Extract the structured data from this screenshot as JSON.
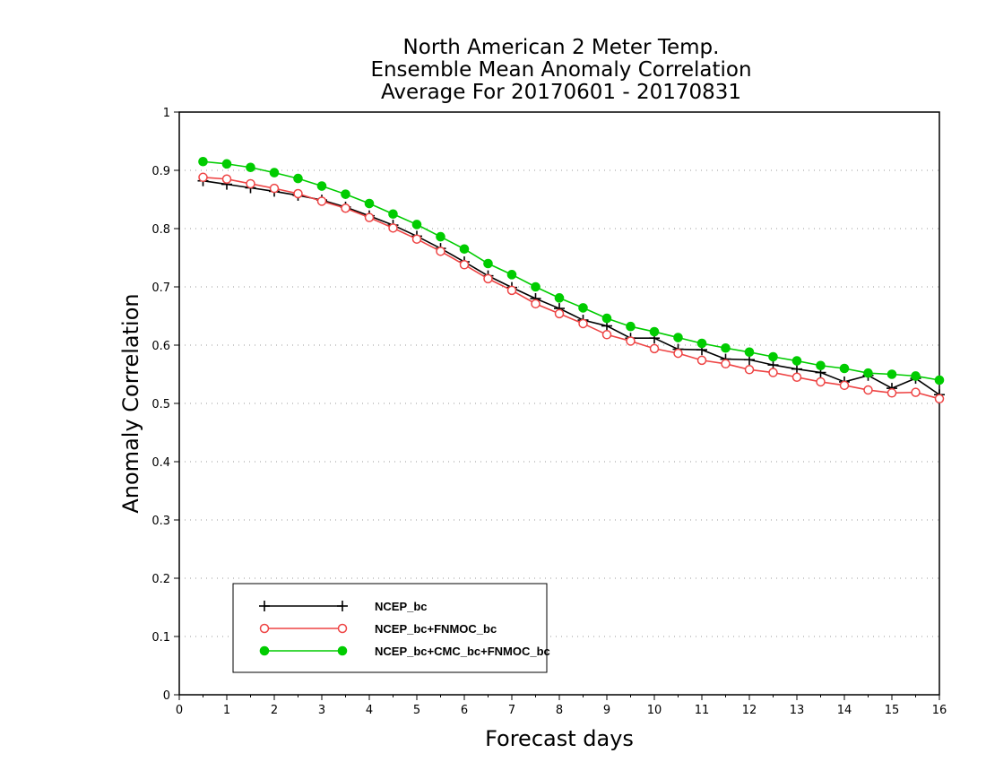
{
  "chart_data": {
    "type": "line",
    "title_lines": [
      "North American 2 Meter Temp.",
      "Ensemble Mean Anomaly Correlation",
      "Average For 20170601 - 20170831"
    ],
    "xlabel": "Forecast days",
    "ylabel": "Anomaly Correlation",
    "xlim": [
      0,
      16
    ],
    "ylim": [
      0,
      1
    ],
    "xticks": [
      "0",
      "1",
      "2",
      "3",
      "4",
      "5",
      "6",
      "7",
      "8",
      "9",
      "10",
      "11",
      "12",
      "13",
      "14",
      "15",
      "16"
    ],
    "yticks": [
      "0",
      "0.1",
      "0.2",
      "0.3",
      "0.4",
      "0.5",
      "0.6",
      "0.7",
      "0.8",
      "0.9",
      "1"
    ],
    "grid": true,
    "legend_position": "bottom-left",
    "x": [
      0.5,
      1,
      1.5,
      2,
      2.5,
      3,
      3.5,
      4,
      4.5,
      5,
      5.5,
      6,
      6.5,
      7,
      7.5,
      8,
      8.5,
      9,
      9.5,
      10,
      10.5,
      11,
      11.5,
      12,
      12.5,
      13,
      13.5,
      14,
      14.5,
      15,
      15.5,
      16
    ],
    "series": [
      {
        "name": "NCEP_bc",
        "color": "#000000",
        "marker": "plus",
        "values": [
          0.882,
          0.876,
          0.87,
          0.864,
          0.857,
          0.849,
          0.837,
          0.822,
          0.806,
          0.787,
          0.766,
          0.743,
          0.719,
          0.699,
          0.68,
          0.663,
          0.643,
          0.633,
          0.612,
          0.612,
          0.593,
          0.592,
          0.576,
          0.575,
          0.566,
          0.559,
          0.553,
          0.537,
          0.548,
          0.526,
          0.543,
          0.515
        ]
      },
      {
        "name": "NCEP_bc+FNMOC_bc",
        "color": "#ee4444",
        "marker": "open-circle",
        "values": [
          0.888,
          0.885,
          0.877,
          0.869,
          0.86,
          0.847,
          0.835,
          0.819,
          0.801,
          0.782,
          0.761,
          0.738,
          0.714,
          0.694,
          0.671,
          0.654,
          0.637,
          0.618,
          0.607,
          0.594,
          0.586,
          0.574,
          0.568,
          0.558,
          0.553,
          0.545,
          0.537,
          0.531,
          0.523,
          0.518,
          0.519,
          0.508
        ]
      },
      {
        "name": "NCEP_bc+CMC_bc+FNMOC_bc",
        "color": "#00cc00",
        "marker": "filled-circle",
        "values": [
          0.915,
          0.911,
          0.905,
          0.896,
          0.886,
          0.873,
          0.859,
          0.843,
          0.825,
          0.807,
          0.786,
          0.765,
          0.74,
          0.721,
          0.7,
          0.681,
          0.664,
          0.646,
          0.632,
          0.623,
          0.613,
          0.603,
          0.595,
          0.588,
          0.58,
          0.573,
          0.565,
          0.56,
          0.552,
          0.55,
          0.547,
          0.54
        ]
      }
    ]
  }
}
